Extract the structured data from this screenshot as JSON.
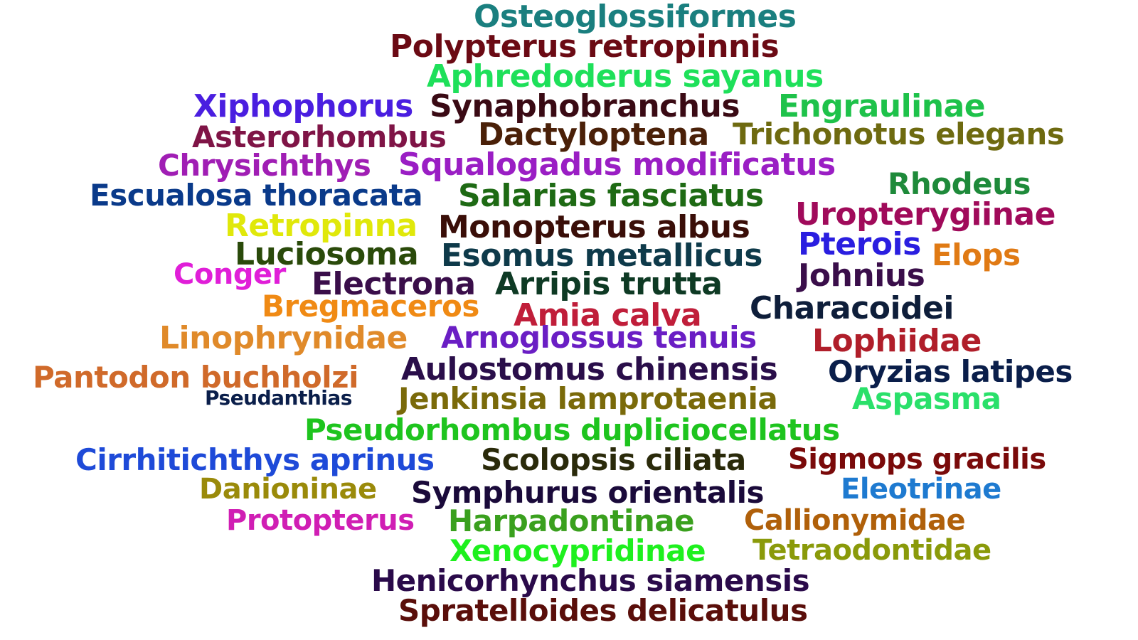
{
  "words": [
    {
      "text": "Osteoglossiformes",
      "color": "#1a7f7f"
    },
    {
      "text": "Polypterus retropinnis",
      "color": "#6b0a14"
    },
    {
      "text": "Aphredoderus sayanus",
      "color": "#1ee05a"
    },
    {
      "text": "Xiphophorus",
      "color": "#4a1ee0"
    },
    {
      "text": "Synaphobranchus",
      "color": "#3a0a14"
    },
    {
      "text": "Engraulinae",
      "color": "#1ec24a"
    },
    {
      "text": "Asterorhombus",
      "color": "#7f1446"
    },
    {
      "text": "Dactyloptena",
      "color": "#4a2008"
    },
    {
      "text": "Trichonotus elegans",
      "color": "#6e6a10"
    },
    {
      "text": "Chrysichthys",
      "color": "#a01eb4"
    },
    {
      "text": "Squalogadus modificatus",
      "color": "#9a1ec4"
    },
    {
      "text": "Rhodeus",
      "color": "#1e8a3a"
    },
    {
      "text": "Escualosa thoracata",
      "color": "#0a3a8a"
    },
    {
      "text": "Salarias fasciatus",
      "color": "#1e6a14"
    },
    {
      "text": "Uropterygiinae",
      "color": "#a00a5a"
    },
    {
      "text": "Retropinna",
      "color": "#e0e80a"
    },
    {
      "text": "Monopterus albus",
      "color": "#3a0e08"
    },
    {
      "text": "Pterois",
      "color": "#2a1ee0"
    },
    {
      "text": "Elops",
      "color": "#e07a14"
    },
    {
      "text": "Luciosoma",
      "color": "#2a4a0a"
    },
    {
      "text": "Esomus metallicus",
      "color": "#0e3a4a"
    },
    {
      "text": "Conger",
      "color": "#e01ed8"
    },
    {
      "text": "Johnius",
      "color": "#3a0e4a"
    },
    {
      "text": "Electrona",
      "color": "#3a0e4a"
    },
    {
      "text": "Arripis trutta",
      "color": "#0e3a24"
    },
    {
      "text": "Bregmaceros",
      "color": "#f08a14"
    },
    {
      "text": "Characoidei",
      "color": "#0e1e3a"
    },
    {
      "text": "Amia calva",
      "color": "#c01e3a"
    },
    {
      "text": "Linophrynidae",
      "color": "#e08a2a"
    },
    {
      "text": "Arnoglossus tenuis",
      "color": "#6a1ec4"
    },
    {
      "text": "Lophiidae",
      "color": "#b01e2a"
    },
    {
      "text": "Pantodon buchholzi",
      "color": "#d06a2a"
    },
    {
      "text": "Aulostomus chinensis",
      "color": "#2a0e4a"
    },
    {
      "text": "Oryzias latipes",
      "color": "#0a1e4a"
    },
    {
      "text": "Pseudanthias",
      "color": "#0a1e4a"
    },
    {
      "text": "Jenkinsia lamprotaenia",
      "color": "#7a6a0a"
    },
    {
      "text": "Aspasma",
      "color": "#2ae06a"
    },
    {
      "text": "Pseudorhombus dupliciocellatus",
      "color": "#1ec41e"
    },
    {
      "text": "Cirrhitichthys aprinus",
      "color": "#1e4ad8"
    },
    {
      "text": "Scolopsis ciliata",
      "color": "#2a2a0a"
    },
    {
      "text": "Sigmops gracilis",
      "color": "#7a0a0a"
    },
    {
      "text": "Danioninae",
      "color": "#9a8a0a"
    },
    {
      "text": "Symphurus orientalis",
      "color": "#1a0a3a"
    },
    {
      "text": "Eleotrinae",
      "color": "#1e7ad0"
    },
    {
      "text": "Protopterus",
      "color": "#d01eb4"
    },
    {
      "text": "Harpadontinae",
      "color": "#3aa01e"
    },
    {
      "text": "Callionymidae",
      "color": "#b0600a"
    },
    {
      "text": "Xenocypridinae",
      "color": "#1ef01e"
    },
    {
      "text": "Tetraodontidae",
      "color": "#8a9a0a"
    },
    {
      "text": "Henicorhynchus siamensis",
      "color": "#2a0a4a"
    },
    {
      "text": "Spratelloides delicatulus",
      "color": "#5a0e0a"
    }
  ]
}
